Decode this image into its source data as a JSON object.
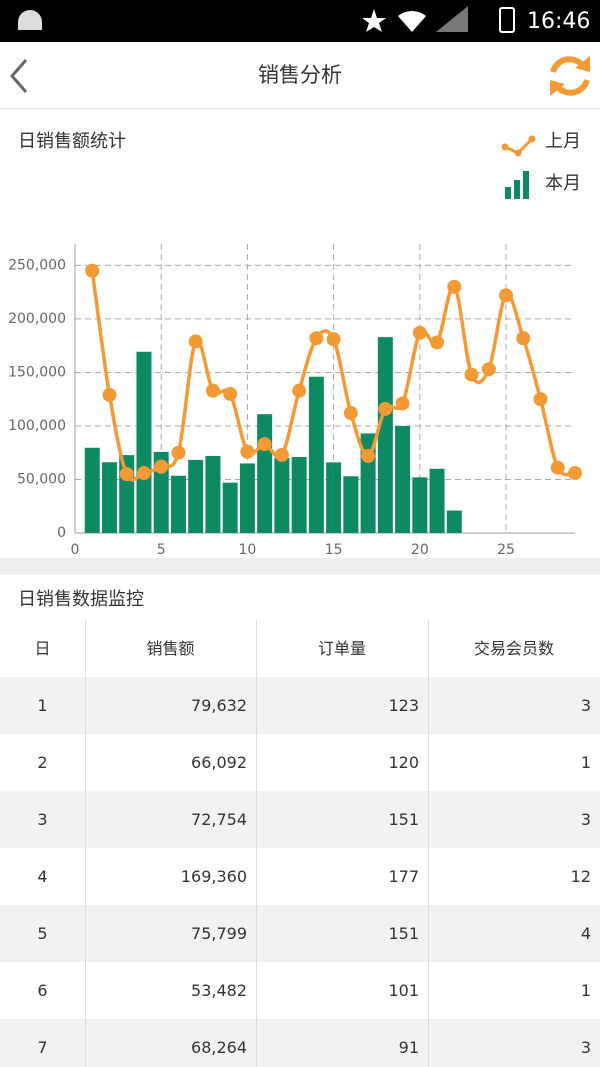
{
  "status_bar": {
    "time": "16:46"
  },
  "header": {
    "title": "销售分析"
  },
  "chart_section": {
    "title": "日销售额统计"
  },
  "chart_data": {
    "type": "combo",
    "series": [
      {
        "name": "上月",
        "type": "line",
        "color": "#f39a35",
        "x": [
          1,
          2,
          3,
          4,
          5,
          6,
          7,
          8,
          9,
          10,
          11,
          12,
          13,
          14,
          15,
          16,
          17,
          18,
          19,
          20,
          21,
          22,
          23,
          24,
          25,
          26,
          27,
          28,
          29
        ],
        "values": [
          245000,
          129000,
          55000,
          56000,
          62000,
          75000,
          179000,
          133000,
          130000,
          76000,
          83000,
          73000,
          133000,
          182000,
          181000,
          112000,
          72000,
          116000,
          121000,
          187000,
          178000,
          230000,
          148000,
          153000,
          222000,
          182000,
          125000,
          61000,
          56000
        ]
      },
      {
        "name": "本月",
        "type": "bar",
        "color": "#0d8a62",
        "x": [
          1,
          2,
          3,
          4,
          5,
          6,
          7,
          8,
          9,
          10,
          11,
          12,
          13,
          14,
          15,
          16,
          17,
          18,
          19,
          20,
          21,
          22
        ],
        "values": [
          79632,
          66092,
          72754,
          169360,
          75799,
          53482,
          68264,
          72000,
          47000,
          65000,
          111000,
          70000,
          71000,
          146000,
          66000,
          53000,
          93000,
          183000,
          100000,
          52000,
          60000,
          21000
        ]
      }
    ],
    "xlim": [
      0,
      29
    ],
    "xticks": [
      0,
      5,
      10,
      15,
      20,
      25
    ],
    "ylim": [
      0,
      270000
    ],
    "yticks": [
      0,
      {
        "value": 50000,
        "label": "50,000"
      },
      {
        "value": 100000,
        "label": "100,000"
      },
      {
        "value": 150000,
        "label": "150,000"
      },
      {
        "value": 200000,
        "label": "200,000"
      },
      {
        "value": 250000,
        "label": "250,000"
      }
    ],
    "grid": true
  },
  "table_section": {
    "title": "日销售数据监控"
  },
  "table": {
    "columns": [
      "日",
      "销售额",
      "订单量",
      "交易会员数"
    ],
    "rows": [
      [
        "1",
        "79,632",
        "123",
        "3"
      ],
      [
        "2",
        "66,092",
        "120",
        "1"
      ],
      [
        "3",
        "72,754",
        "151",
        "3"
      ],
      [
        "4",
        "169,360",
        "177",
        "12"
      ],
      [
        "5",
        "75,799",
        "151",
        "4"
      ],
      [
        "6",
        "53,482",
        "101",
        "1"
      ],
      [
        "7",
        "68,264",
        "91",
        "3"
      ]
    ]
  }
}
